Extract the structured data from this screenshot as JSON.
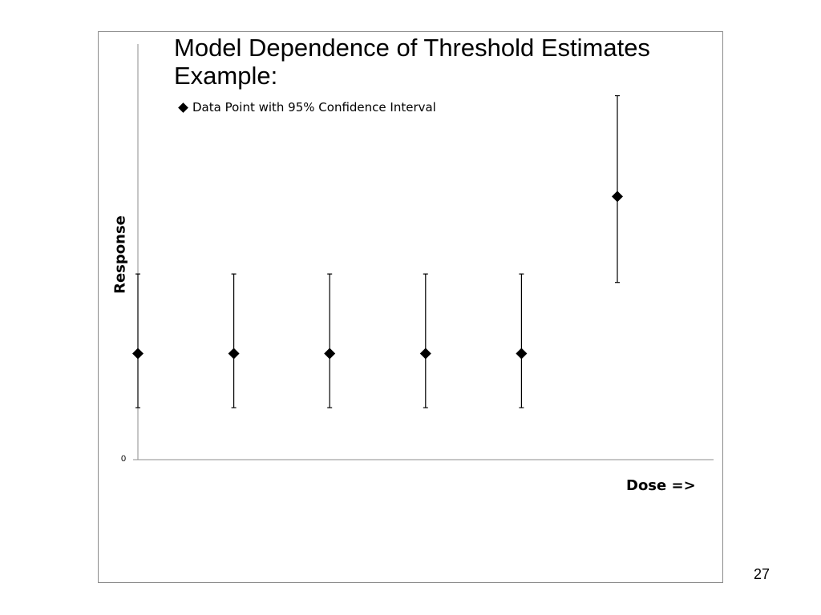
{
  "slide": {
    "page_number": "27"
  },
  "chart_data": {
    "type": "scatter",
    "title": "Model Dependence of Threshold Estimates",
    "subtitle": "Example:",
    "xlabel": "Dose =>",
    "ylabel": "Response",
    "y_ticks": [
      "0"
    ],
    "legend": {
      "label": "Data Point with 95% Confidence Interval",
      "position": "top-left"
    },
    "grid": false,
    "series": [
      {
        "name": "Data Point with 95% Confidence Interval",
        "x": [
          1,
          2,
          3,
          4,
          5,
          6
        ],
        "y": [
          1.0,
          1.0,
          1.0,
          1.0,
          1.0,
          2.48
        ],
        "ci_low": [
          0.49,
          0.49,
          0.49,
          0.49,
          0.49,
          1.67
        ],
        "ci_high": [
          1.75,
          1.75,
          1.75,
          1.75,
          1.75,
          3.43
        ]
      }
    ],
    "colors": {
      "marker": "#000000",
      "axis": "#8c8c8c",
      "errorbar": "#000000"
    }
  }
}
